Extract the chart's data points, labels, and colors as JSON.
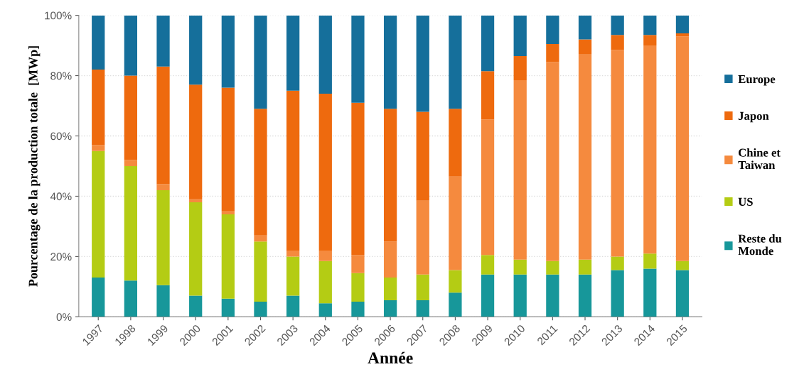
{
  "chart_data": {
    "type": "bar",
    "stacked": true,
    "xlabel": "Année",
    "ylabel": "Pourcentage de la production totale  [MWp]",
    "categories": [
      "1997",
      "1998",
      "1999",
      "2000",
      "2001",
      "2002",
      "2003",
      "2004",
      "2005",
      "2006",
      "2007",
      "2008",
      "2009",
      "2010",
      "2011",
      "2012",
      "2013",
      "2014",
      "2015"
    ],
    "series": [
      {
        "name": "Reste du\nMonde",
        "color": "#17979a",
        "values": [
          13,
          12,
          10.5,
          7,
          6,
          5,
          7,
          4.5,
          5,
          5.5,
          5.5,
          8,
          14,
          14,
          14,
          14,
          15.5,
          16,
          15.5
        ]
      },
      {
        "name": "US",
        "color": "#b4cc14",
        "values": [
          42,
          38,
          31.5,
          31,
          28,
          20,
          13,
          14,
          9.5,
          7.5,
          8.5,
          7.5,
          6.5,
          5,
          4.5,
          5,
          4.5,
          5,
          3
        ]
      },
      {
        "name": "Chine et\nTaiwan",
        "color": "#f58a3e",
        "values": [
          2,
          2,
          2,
          1,
          1,
          2,
          2,
          3.5,
          6,
          12,
          24.5,
          31,
          45,
          59.5,
          66,
          68,
          68.5,
          69,
          74.5
        ]
      },
      {
        "name": "Japon",
        "color": "#ee6a0e",
        "values": [
          25,
          28,
          39,
          38,
          41,
          42,
          53,
          52,
          50.5,
          44,
          29.5,
          22.5,
          16,
          8,
          6,
          5,
          5,
          3.5,
          1
        ]
      },
      {
        "name": "Europe",
        "color": "#156f9b",
        "values": [
          18,
          20,
          17,
          23,
          24,
          31,
          25,
          26,
          29,
          31,
          32,
          31,
          18.5,
          13.5,
          9.5,
          8,
          6.5,
          6.5,
          6
        ]
      }
    ],
    "ylim": [
      0,
      100
    ],
    "yticks": [
      {
        "value": 0,
        "label": "0%"
      },
      {
        "value": 20,
        "label": "20%"
      },
      {
        "value": 40,
        "label": "40%"
      },
      {
        "value": 60,
        "label": "60%"
      },
      {
        "value": 80,
        "label": "80%"
      },
      {
        "value": 100,
        "label": "100%"
      }
    ],
    "grid": "y",
    "legend": "right"
  }
}
